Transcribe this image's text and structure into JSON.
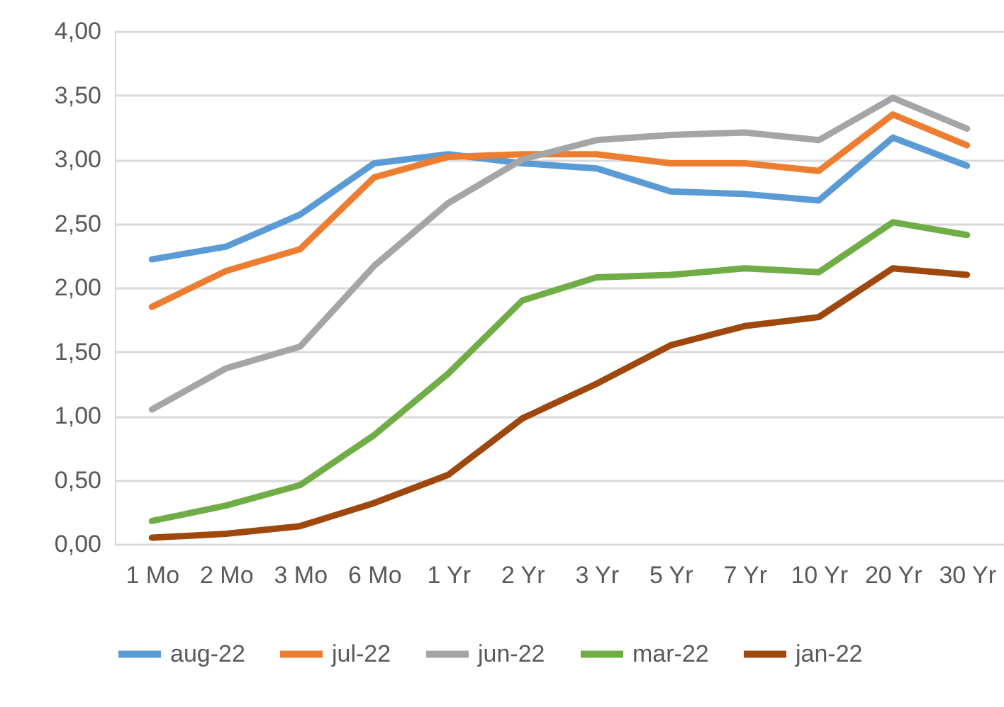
{
  "chart_data": {
    "type": "line",
    "categories": [
      "1 Mo",
      "2 Mo",
      "3 Mo",
      "6 Mo",
      "1 Yr",
      "2 Yr",
      "3 Yr",
      "5 Yr",
      "7 Yr",
      "10 Yr",
      "20 Yr",
      "30 Yr"
    ],
    "series": [
      {
        "name": "aug-22",
        "color": "#5b9bd5",
        "values": [
          2.22,
          2.32,
          2.57,
          2.97,
          3.04,
          2.97,
          2.93,
          2.75,
          2.73,
          2.68,
          3.17,
          2.95
        ]
      },
      {
        "name": "jul-22",
        "color": "#ed7d31",
        "values": [
          1.85,
          2.13,
          2.3,
          2.86,
          3.02,
          3.04,
          3.04,
          2.97,
          2.97,
          2.91,
          3.35,
          3.11
        ]
      },
      {
        "name": "jun-22",
        "color": "#a5a5a5",
        "values": [
          1.05,
          1.37,
          1.54,
          2.17,
          2.66,
          3.0,
          3.15,
          3.19,
          3.21,
          3.15,
          3.48,
          3.24
        ]
      },
      {
        "name": "mar-22",
        "color": "#70ad47",
        "values": [
          0.18,
          0.3,
          0.46,
          0.85,
          1.33,
          1.9,
          2.08,
          2.1,
          2.15,
          2.12,
          2.51,
          2.41
        ]
      },
      {
        "name": "jan-22",
        "color": "#9e480e",
        "values": [
          0.05,
          0.08,
          0.14,
          0.32,
          0.54,
          0.98,
          1.25,
          1.55,
          1.7,
          1.77,
          2.15,
          2.1
        ]
      }
    ],
    "ylim": [
      0,
      4
    ],
    "yticks": [
      {
        "value": 0,
        "label": "0,00"
      },
      {
        "value": 0.5,
        "label": "0,50"
      },
      {
        "value": 1,
        "label": "1,00"
      },
      {
        "value": 1.5,
        "label": "1,50"
      },
      {
        "value": 2,
        "label": "2,00"
      },
      {
        "value": 2.5,
        "label": "2,50"
      },
      {
        "value": 3,
        "label": "3,00"
      },
      {
        "value": 3.5,
        "label": "3,50"
      },
      {
        "value": 4,
        "label": "4,00"
      }
    ],
    "grid": "y",
    "legend": "bottom"
  }
}
